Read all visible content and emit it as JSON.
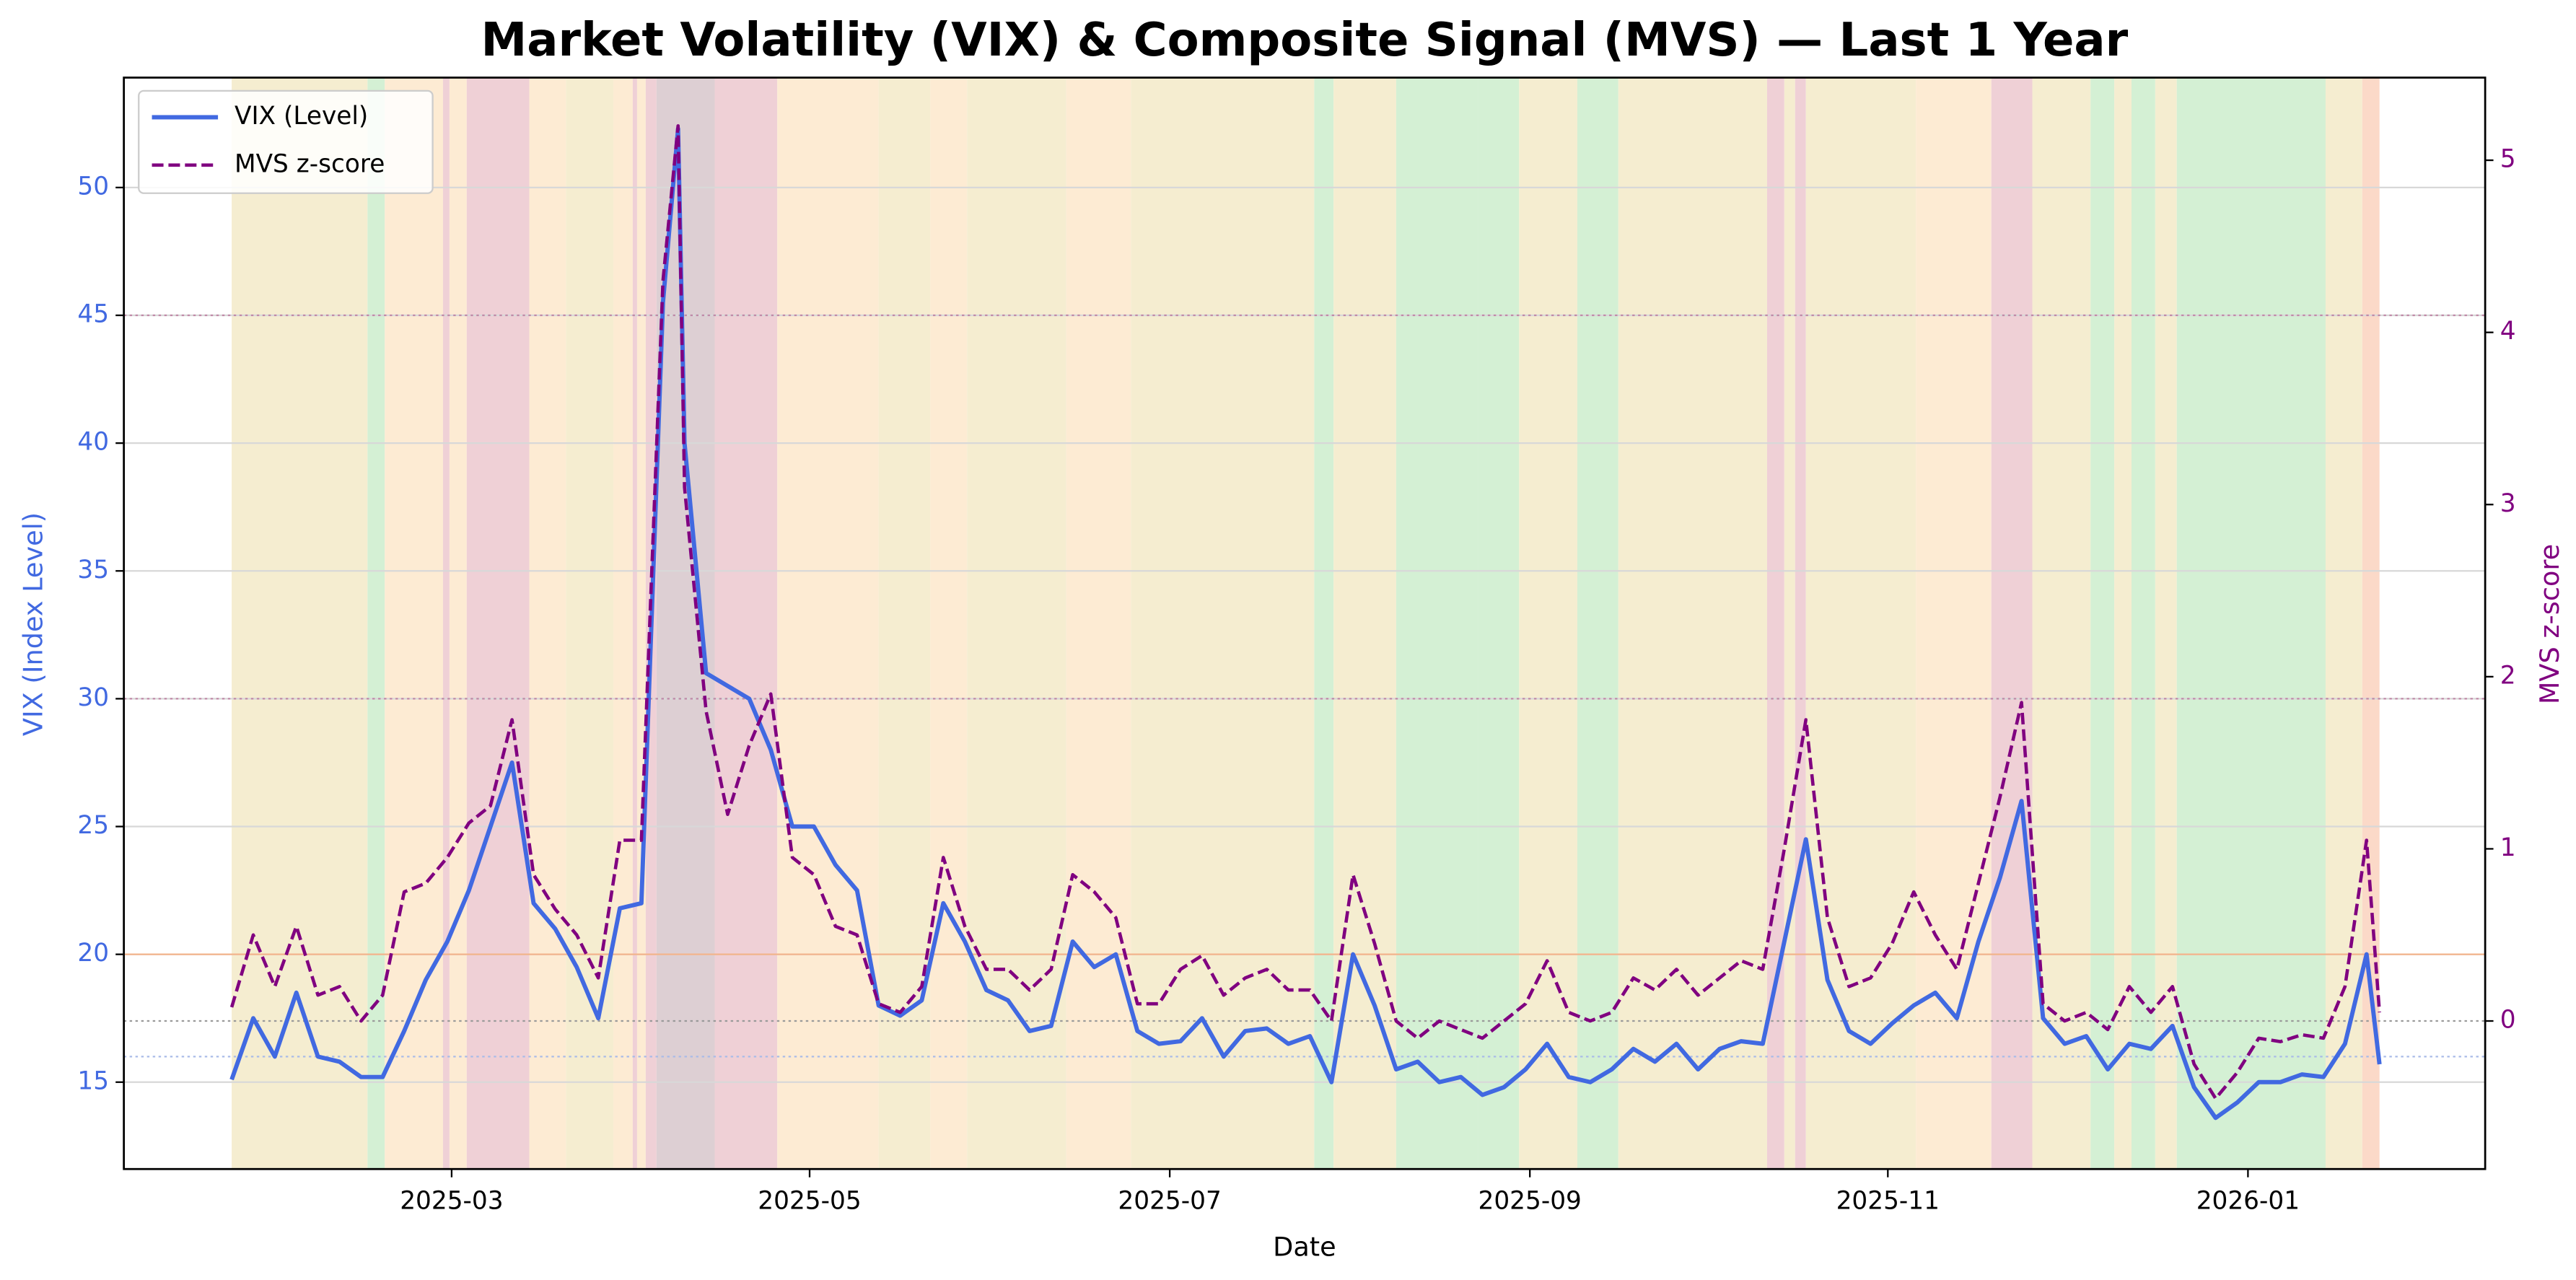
{
  "chart_data": {
    "type": "line",
    "title": "Market Volatility (VIX) & Composite Signal (MVS) — Last 1 Year",
    "xlabel": "Date",
    "ylabel": "VIX (Index Level)",
    "y2label": "MVS z-score",
    "legend": "upper left",
    "grid": true,
    "x": [
      2025.065,
      2025.075,
      2025.085,
      2025.095,
      2025.105,
      2025.115,
      2025.125,
      2025.135,
      2025.145,
      2025.155,
      2025.165,
      2025.175,
      2025.185,
      2025.195,
      2025.205,
      2025.215,
      2025.225,
      2025.235,
      2025.245,
      2025.255,
      2025.265,
      2025.272,
      2025.275,
      2025.285,
      2025.295,
      2025.305,
      2025.315,
      2025.325,
      2025.335,
      2025.345,
      2025.355,
      2025.365,
      2025.375,
      2025.385,
      2025.395,
      2025.405,
      2025.415,
      2025.425,
      2025.435,
      2025.445,
      2025.455,
      2025.465,
      2025.475,
      2025.485,
      2025.495,
      2025.505,
      2025.515,
      2025.525,
      2025.535,
      2025.545,
      2025.555,
      2025.565,
      2025.575,
      2025.585,
      2025.595,
      2025.605,
      2025.615,
      2025.625,
      2025.635,
      2025.645,
      2025.655,
      2025.665,
      2025.675,
      2025.685,
      2025.695,
      2025.705,
      2025.715,
      2025.725,
      2025.735,
      2025.745,
      2025.755,
      2025.765,
      2025.775,
      2025.785,
      2025.795,
      2025.805,
      2025.815,
      2025.825,
      2025.835,
      2025.845,
      2025.855,
      2025.865,
      2025.875,
      2025.885,
      2025.895,
      2025.905,
      2025.915,
      2025.925,
      2025.935,
      2025.945,
      2025.955,
      2025.965,
      2025.975,
      2025.985,
      2025.995,
      2026.005,
      2026.015,
      2026.025,
      2026.035,
      2026.045,
      2026.055,
      2026.061
    ],
    "series": [
      {
        "name": "VIX (Level)",
        "color": "#4169e1",
        "axis": "y",
        "dash": false,
        "values": [
          15.1,
          17.5,
          16.0,
          18.5,
          16.0,
          15.8,
          15.2,
          15.2,
          17.0,
          19.0,
          20.5,
          22.5,
          25.0,
          27.5,
          22.0,
          21.0,
          19.5,
          17.5,
          21.8,
          22.0,
          45.5,
          52.3,
          40.0,
          31.0,
          30.5,
          30.0,
          28.0,
          25.0,
          25.0,
          23.5,
          22.5,
          18.0,
          17.6,
          18.2,
          22.0,
          20.5,
          18.6,
          18.2,
          17.0,
          17.2,
          20.5,
          19.5,
          20.0,
          17.0,
          16.5,
          16.6,
          17.5,
          16.0,
          17.0,
          17.1,
          16.5,
          16.8,
          15.0,
          20.0,
          18.0,
          15.5,
          15.8,
          15.0,
          15.2,
          14.5,
          14.8,
          15.5,
          16.5,
          15.2,
          15.0,
          15.5,
          16.3,
          15.8,
          16.5,
          15.5,
          16.3,
          16.6,
          16.5,
          20.5,
          24.5,
          19.0,
          17.0,
          16.5,
          17.3,
          18.0,
          18.5,
          17.5,
          20.5,
          23.0,
          26.0,
          17.5,
          16.5,
          16.8,
          15.5,
          16.5,
          16.3,
          17.2,
          14.8,
          13.6,
          14.2,
          15.0,
          15.0,
          15.3,
          15.2,
          16.5,
          20.0,
          15.7
        ]
      },
      {
        "name": "MVS z-score",
        "color": "#800080",
        "axis": "y2",
        "dash": true,
        "values": [
          0.08,
          0.5,
          0.2,
          0.55,
          0.15,
          0.2,
          0.0,
          0.15,
          0.75,
          0.8,
          0.95,
          1.15,
          1.25,
          1.75,
          0.85,
          0.65,
          0.5,
          0.25,
          1.05,
          1.05,
          4.3,
          5.2,
          3.1,
          1.8,
          1.2,
          1.6,
          1.9,
          0.95,
          0.85,
          0.55,
          0.5,
          0.1,
          0.05,
          0.2,
          0.95,
          0.55,
          0.3,
          0.3,
          0.18,
          0.3,
          0.85,
          0.75,
          0.6,
          0.1,
          0.1,
          0.3,
          0.38,
          0.15,
          0.25,
          0.3,
          0.18,
          0.18,
          0.0,
          0.85,
          0.45,
          0.0,
          -0.1,
          0.0,
          -0.05,
          -0.1,
          0.0,
          0.1,
          0.35,
          0.05,
          0.0,
          0.05,
          0.25,
          0.18,
          0.3,
          0.15,
          0.25,
          0.35,
          0.3,
          1.0,
          1.75,
          0.6,
          0.2,
          0.25,
          0.45,
          0.75,
          0.5,
          0.3,
          0.8,
          1.3,
          1.85,
          0.1,
          0.0,
          0.05,
          -0.05,
          0.2,
          0.05,
          0.2,
          -0.25,
          -0.45,
          -0.3,
          -0.1,
          -0.12,
          -0.08,
          -0.1,
          0.2,
          1.05,
          0.05
        ]
      }
    ],
    "xlim": [
      2025.015,
      2026.11
    ],
    "xticks": [
      {
        "value": 2025.167,
        "label": "2025-03"
      },
      {
        "value": 2025.333,
        "label": "2025-05"
      },
      {
        "value": 2025.5,
        "label": "2025-07"
      },
      {
        "value": 2025.667,
        "label": "2025-09"
      },
      {
        "value": 2025.833,
        "label": "2025-11"
      },
      {
        "value": 2026.0,
        "label": "2026-01"
      }
    ],
    "ylim": [
      11.6,
      54.3
    ],
    "yticks": [
      15,
      20,
      25,
      30,
      35,
      40,
      45,
      50
    ],
    "y2lim": [
      -0.86,
      5.48
    ],
    "y2ticks": [
      0,
      1,
      2,
      3,
      4,
      5
    ],
    "reference_lines": [
      {
        "axis": "y",
        "value": 45,
        "color": "#c08aa8"
      },
      {
        "axis": "y",
        "value": 30,
        "color": "#c08aa8"
      },
      {
        "axis": "y",
        "value": 20,
        "color": "#f3b48c"
      },
      {
        "axis": "y2",
        "value": 0,
        "color": "#9a9a9a"
      },
      {
        "axis": "y",
        "value": 16,
        "color": "#a9bbe8"
      }
    ],
    "regions": [
      {
        "start": 2025.065,
        "end": 2025.128,
        "color": "#f5edd0"
      },
      {
        "start": 2025.128,
        "end": 2025.136,
        "color": "#d4f0d4"
      },
      {
        "start": 2025.136,
        "end": 2025.163,
        "color": "#fdebd3"
      },
      {
        "start": 2025.163,
        "end": 2025.166,
        "color": "#efd0d6"
      },
      {
        "start": 2025.166,
        "end": 2025.174,
        "color": "#fdebd3"
      },
      {
        "start": 2025.174,
        "end": 2025.203,
        "color": "#efd0d6"
      },
      {
        "start": 2025.203,
        "end": 2025.22,
        "color": "#fdebd3"
      },
      {
        "start": 2025.22,
        "end": 2025.242,
        "color": "#f5edd0"
      },
      {
        "start": 2025.242,
        "end": 2025.251,
        "color": "#fdebd3"
      },
      {
        "start": 2025.251,
        "end": 2025.253,
        "color": "#efd0d6"
      },
      {
        "start": 2025.253,
        "end": 2025.257,
        "color": "#fdebd3"
      },
      {
        "start": 2025.257,
        "end": 2025.262,
        "color": "#efd0d6"
      },
      {
        "start": 2025.262,
        "end": 2025.289,
        "color": "#ddcfd3"
      },
      {
        "start": 2025.289,
        "end": 2025.318,
        "color": "#efd0d6"
      },
      {
        "start": 2025.318,
        "end": 2025.365,
        "color": "#fdebd3"
      },
      {
        "start": 2025.365,
        "end": 2025.389,
        "color": "#f5edd0"
      },
      {
        "start": 2025.389,
        "end": 2025.406,
        "color": "#fdebd3"
      },
      {
        "start": 2025.406,
        "end": 2025.452,
        "color": "#f5edd0"
      },
      {
        "start": 2025.452,
        "end": 2025.482,
        "color": "#fdebd3"
      },
      {
        "start": 2025.482,
        "end": 2025.567,
        "color": "#f5edd0"
      },
      {
        "start": 2025.567,
        "end": 2025.576,
        "color": "#d4f0d4"
      },
      {
        "start": 2025.576,
        "end": 2025.605,
        "color": "#f5edd0"
      },
      {
        "start": 2025.605,
        "end": 2025.643,
        "color": "#d4f0d4"
      },
      {
        "start": 2025.643,
        "end": 2025.662,
        "color": "#d4f0d4"
      },
      {
        "start": 2025.662,
        "end": 2025.689,
        "color": "#f5edd0"
      },
      {
        "start": 2025.689,
        "end": 2025.708,
        "color": "#d4f0d4"
      },
      {
        "start": 2025.708,
        "end": 2025.777,
        "color": "#f5edd0"
      },
      {
        "start": 2025.777,
        "end": 2025.785,
        "color": "#efd0d6"
      },
      {
        "start": 2025.785,
        "end": 2025.79,
        "color": "#f5edd0"
      },
      {
        "start": 2025.79,
        "end": 2025.795,
        "color": "#efd0d6"
      },
      {
        "start": 2025.795,
        "end": 2025.846,
        "color": "#f5edd0"
      },
      {
        "start": 2025.846,
        "end": 2025.881,
        "color": "#fdebd3"
      },
      {
        "start": 2025.881,
        "end": 2025.9,
        "color": "#efd0d6"
      },
      {
        "start": 2025.9,
        "end": 2025.927,
        "color": "#f5edd0"
      },
      {
        "start": 2025.927,
        "end": 2025.938,
        "color": "#d4f0d4"
      },
      {
        "start": 2025.938,
        "end": 2025.946,
        "color": "#f5edd0"
      },
      {
        "start": 2025.946,
        "end": 2025.957,
        "color": "#d4f0d4"
      },
      {
        "start": 2025.957,
        "end": 2025.967,
        "color": "#f5edd0"
      },
      {
        "start": 2025.967,
        "end": 2026.036,
        "color": "#d4f0d4"
      },
      {
        "start": 2026.036,
        "end": 2026.053,
        "color": "#f5edd0"
      },
      {
        "start": 2026.053,
        "end": 2026.061,
        "color": "#fbd9c8"
      }
    ]
  }
}
